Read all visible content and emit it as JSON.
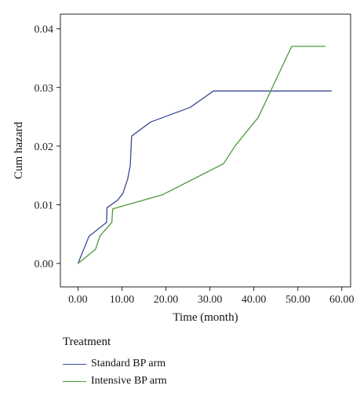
{
  "chart_data": {
    "type": "line",
    "xlabel": "Time (month)",
    "ylabel": "Cum hazard",
    "xlim": [
      -4,
      62
    ],
    "ylim": [
      -0.004,
      0.0425
    ],
    "xticks": [
      0,
      10,
      20,
      30,
      40,
      50,
      60
    ],
    "xtick_labels": [
      "0.00",
      "10.00",
      "20.00",
      "30.00",
      "40.00",
      "50.00",
      "60.00"
    ],
    "yticks": [
      0,
      0.01,
      0.02,
      0.03,
      0.04
    ],
    "ytick_labels": [
      "0.00",
      "0.01",
      "0.02",
      "0.03",
      "0.04"
    ],
    "legend": {
      "title": "Treatment",
      "position": "bottom-left"
    },
    "series": [
      {
        "name": "Standard BP arm",
        "color": "#3a4a9a",
        "x": [
          0.0,
          2.5,
          6.5,
          6.6,
          9.0,
          10.2,
          11.3,
          11.9,
          12.2,
          16.5,
          25.5,
          30.8,
          57.7
        ],
        "y": [
          0.0,
          0.0046,
          0.007,
          0.0095,
          0.0108,
          0.0119,
          0.0144,
          0.0167,
          0.0217,
          0.0241,
          0.0266,
          0.0294,
          0.0294
        ]
      },
      {
        "name": "Intensive BP arm",
        "color": "#4a9a3a",
        "x": [
          0.0,
          4.0,
          5.0,
          7.7,
          7.9,
          19.2,
          33.1,
          35.8,
          41.0,
          48.6,
          56.3
        ],
        "y": [
          0.0,
          0.0024,
          0.0047,
          0.007,
          0.0093,
          0.0117,
          0.017,
          0.0201,
          0.0249,
          0.037,
          0.037
        ]
      }
    ]
  }
}
